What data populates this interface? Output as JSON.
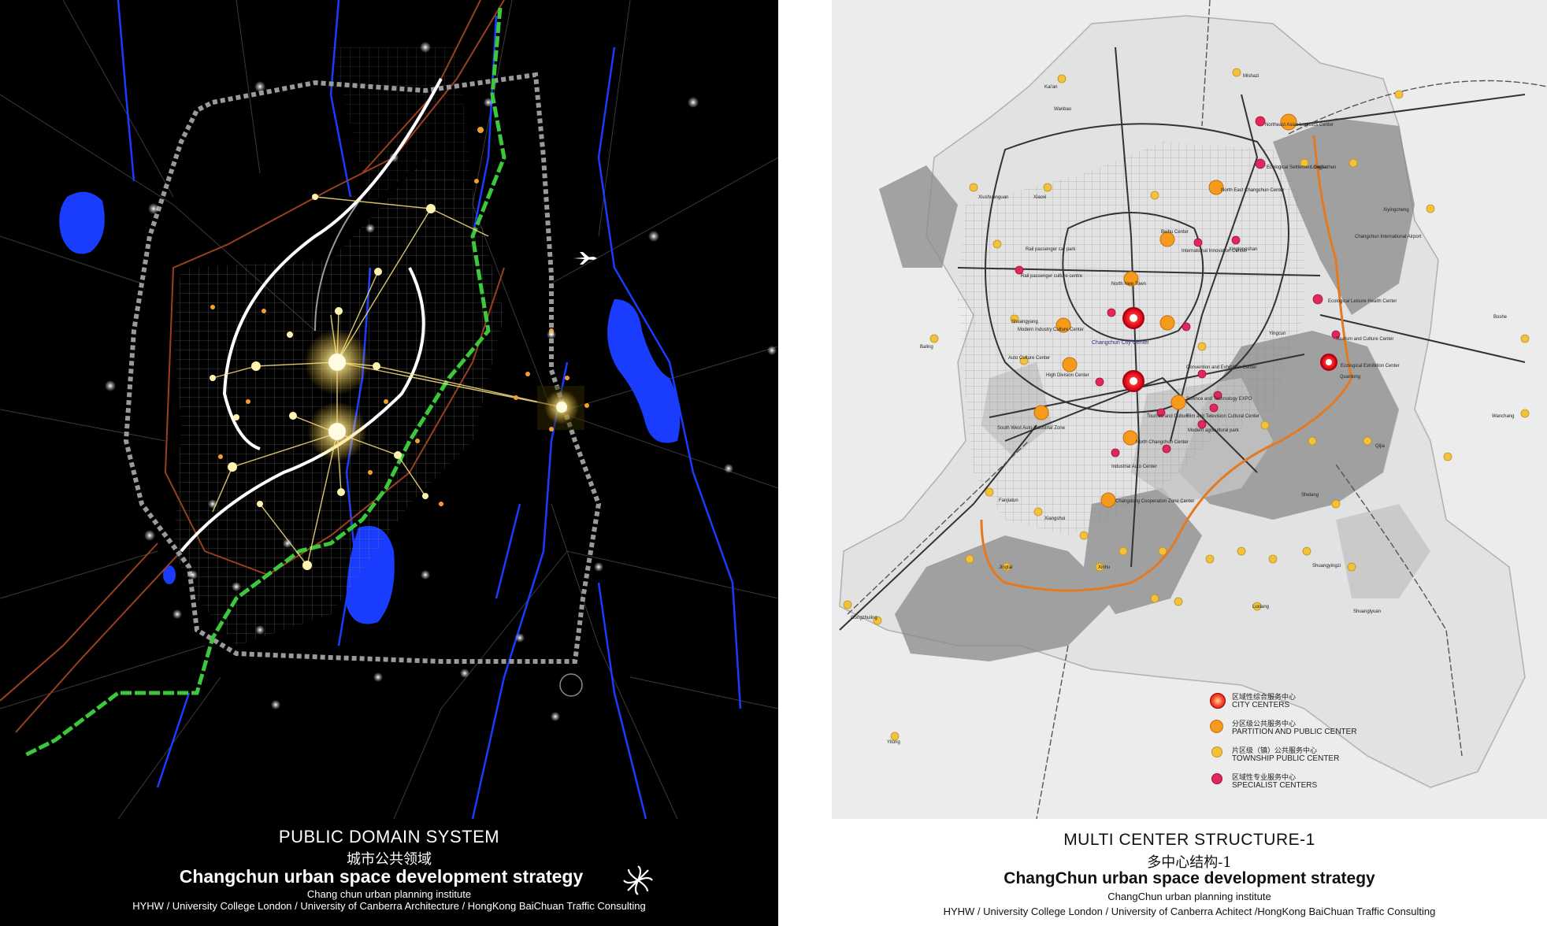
{
  "left_panel": {
    "title": "PUBLIC DOMAIN SYSTEM",
    "title_cn": "城市公共领域",
    "strategy": "Changchun urban space development strategy",
    "institute": "Chang chun urban planning institute",
    "credits": "HYHW / University College London / University of Canberra Architecture / HongKong BaiChuan Traffic Consulting",
    "colors": {
      "background": "#000000",
      "green_line": "#3cc83c",
      "water": "#1a3cff",
      "glow": "#ffe680"
    }
  },
  "right_panel": {
    "title": "MULTI CENTER STRUCTURE-1",
    "title_cn": "多中心结构-1",
    "strategy": "ChangChun urban space development strategy",
    "institute": "ChangChun urban planning institute",
    "credits": "HYHW / University College London /  University of Canberra Achitect /HongKong BaiChuan Traffic Consulting",
    "city_center_label": "Changchun City Center",
    "legend": [
      {
        "cn": "区域性综合服务中心",
        "en": "CITY CENTERS",
        "color": "#e01e2c"
      },
      {
        "cn": "分区级公共服务中心",
        "en": "PARTITION AND PUBLIC CENTER",
        "color": "#f59a1a"
      },
      {
        "cn": "片区级（镇）公共服务中心",
        "en": "TOWNSHIP PUBLIC CENTER",
        "color": "#f2c23a"
      },
      {
        "cn": "区域性专业服务中心",
        "en": "SPECIALIST CENTERS",
        "color": "#e0285a"
      }
    ],
    "place_labels": [
      "Mishazi",
      "Kai'an",
      "Wanbao",
      "Northeast Asian Logistics Center",
      "Ecological Settlement Center",
      "Longjiazhen",
      "North East Changchun Center",
      "Xiushuanguan",
      "Xiaoxi",
      "Rail passenger car park",
      "Beihu Center",
      "International Innovation Center",
      "Xinglongshan",
      "Changchun International Airport",
      "Xiyingcheng",
      "Rail passenger culture centre",
      "North New Town",
      "Ecological Leisure Health Center",
      "Boshe",
      "Shuangyang",
      "Baling",
      "Modern Industry Culture Center",
      "Tourism and Culture Center",
      "Yingcun",
      "Auto Culture Center",
      "High Division Center",
      "Convention and Exhibition Center",
      "Ecological Exhibition Center",
      "Quanlong",
      "Science and Technology EXPO",
      "Wanchang",
      "Tourism and Culture",
      "South West Auto Industrial Zone",
      "Film and Television Cultural Center",
      "Modern agricultural park",
      "North Changchun Center",
      "Qijia",
      "Industrial Auto Center",
      "Fanjiatun",
      "Shelang",
      "Changdong Cooperation Zone Center",
      "Xiangshui",
      "Gongzhuling",
      "Jingtai",
      "Shuangyingzi",
      "Xinhu",
      "Luxiang",
      "Shuanglyuan",
      "Yitong"
    ]
  }
}
